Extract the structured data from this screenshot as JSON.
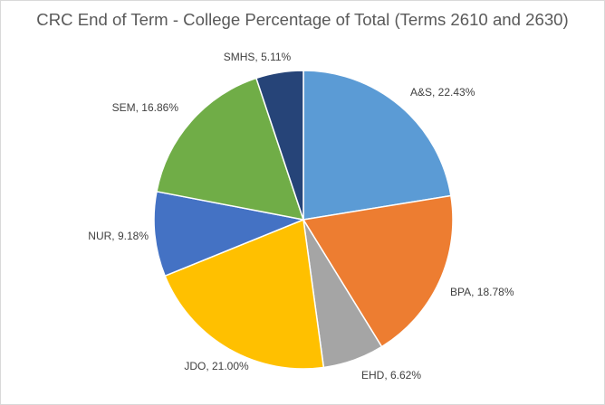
{
  "chart_data": {
    "type": "pie",
    "title": "CRC End of Term - College Percentage of Total (Terms 2610 and 2630)",
    "categories": [
      "A&S",
      "BPA",
      "EHD",
      "JDO",
      "NUR",
      "SEM",
      "SMHS"
    ],
    "values": [
      22.43,
      18.78,
      6.62,
      21.0,
      9.18,
      16.86,
      5.11
    ],
    "labels": [
      "A&S, 22.43%",
      "BPA, 18.78%",
      "EHD, 6.62%",
      "JDO, 21.00%",
      "NUR, 9.18%",
      "SEM, 16.86%",
      "SMHS, 5.11%"
    ],
    "colors": [
      "#5B9BD5",
      "#ED7D31",
      "#A5A5A5",
      "#FFC000",
      "#4472C4",
      "#70AD47",
      "#264478"
    ],
    "legend": "none",
    "start": "12 o'clock, clockwise"
  }
}
